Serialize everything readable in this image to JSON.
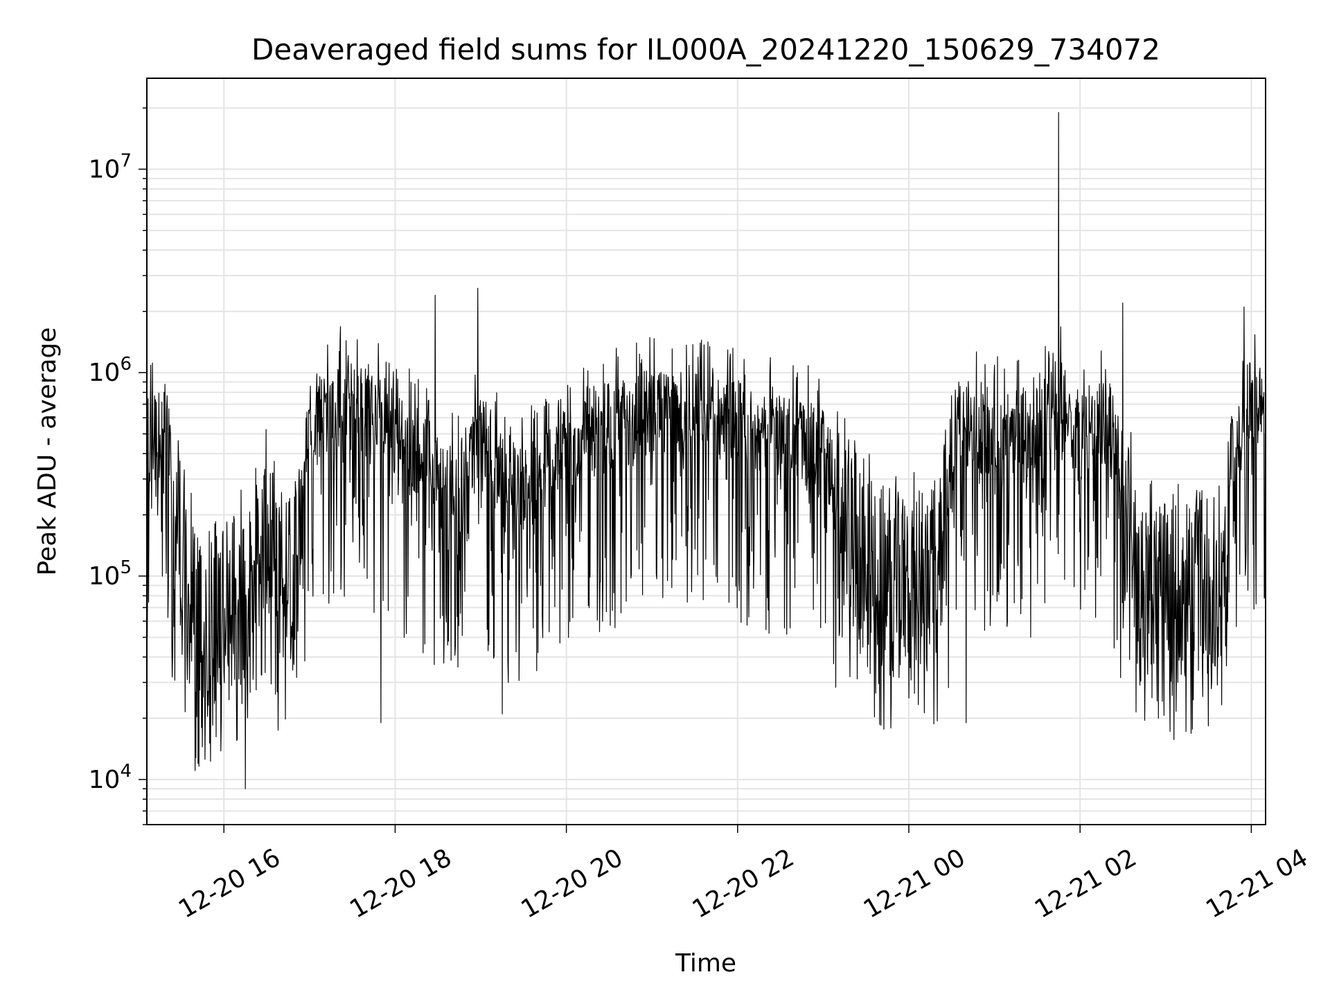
{
  "chart_data": {
    "type": "line",
    "title": "Deaveraged field sums for IL000A_20241220_150629_734072",
    "xlabel": "Time",
    "ylabel": "Peak ADU - average",
    "y_scale": "log",
    "ylim": [
      6000,
      28000000
    ],
    "xlim": [
      "2024-12-20 15:06",
      "2024-12-21 04:10"
    ],
    "x_ticks": [
      {
        "time": "2024-12-20 16:00",
        "label": "12-20 16"
      },
      {
        "time": "2024-12-20 18:00",
        "label": "12-20 18"
      },
      {
        "time": "2024-12-20 20:00",
        "label": "12-20 20"
      },
      {
        "time": "2024-12-20 22:00",
        "label": "12-20 22"
      },
      {
        "time": "2024-12-21 00:00",
        "label": "12-21 00"
      },
      {
        "time": "2024-12-21 02:00",
        "label": "12-21 02"
      },
      {
        "time": "2024-12-21 04:00",
        "label": "12-21 04"
      }
    ],
    "y_ticks": [
      {
        "value": 10000,
        "base": "10",
        "exp": "4"
      },
      {
        "value": 100000,
        "base": "10",
        "exp": "5"
      },
      {
        "value": 1000000,
        "base": "10",
        "exp": "6"
      },
      {
        "value": 10000000,
        "base": "10",
        "exp": "7"
      }
    ],
    "grid": true,
    "line_color": "#000000",
    "grid_color": "#e4e4e4",
    "series": [
      {
        "x": [
          "2024-12-20 15:06",
          "2024-12-20 15:20",
          "2024-12-20 15:30",
          "2024-12-20 15:40",
          "2024-12-20 15:50",
          "2024-12-20 16:00",
          "2024-12-20 16:10",
          "2024-12-20 16:20",
          "2024-12-20 16:30",
          "2024-12-20 16:40",
          "2024-12-20 16:50",
          "2024-12-20 17:00",
          "2024-12-20 17:20",
          "2024-12-20 17:40",
          "2024-12-20 18:00",
          "2024-12-20 18:20",
          "2024-12-20 18:40",
          "2024-12-20 19:00",
          "2024-12-20 19:20",
          "2024-12-20 19:40",
          "2024-12-20 20:00",
          "2024-12-20 20:30",
          "2024-12-20 21:00",
          "2024-12-20 21:30",
          "2024-12-20 22:00",
          "2024-12-20 22:30",
          "2024-12-20 23:00",
          "2024-12-20 23:20",
          "2024-12-20 23:40",
          "2024-12-21 00:00",
          "2024-12-21 00:20",
          "2024-12-21 00:35",
          "2024-12-21 01:00",
          "2024-12-21 01:30",
          "2024-12-21 01:45",
          "2024-12-21 02:00",
          "2024-12-21 02:20",
          "2024-12-21 02:40",
          "2024-12-21 03:00",
          "2024-12-21 03:20",
          "2024-12-21 03:40",
          "2024-12-21 03:55",
          "2024-12-21 04:10"
        ],
        "y": [
          500000,
          500000,
          150000,
          60000,
          60000,
          80000,
          70000,
          120000,
          150000,
          80000,
          100000,
          600000,
          700000,
          650000,
          500000,
          400000,
          250000,
          500000,
          250000,
          300000,
          450000,
          550000,
          600000,
          600000,
          550000,
          500000,
          400000,
          150000,
          100000,
          90000,
          100000,
          600000,
          500000,
          500000,
          700000,
          500000,
          550000,
          100000,
          80000,
          90000,
          100000,
          700000,
          650000
        ],
        "highlights": [
          {
            "x": "2024-12-20 15:42",
            "y": 12000
          },
          {
            "x": "2024-12-20 16:15",
            "y": 9000
          },
          {
            "x": "2024-12-20 17:50",
            "y": 19000
          },
          {
            "x": "2024-12-20 18:28",
            "y": 2400000
          },
          {
            "x": "2024-12-20 18:58",
            "y": 2600000
          },
          {
            "x": "2024-12-20 19:15",
            "y": 21000
          },
          {
            "x": "2024-12-21 00:40",
            "y": 19000
          },
          {
            "x": "2024-12-21 01:45",
            "y": 19000000
          },
          {
            "x": "2024-12-21 02:30",
            "y": 2200000
          },
          {
            "x": "2024-12-21 03:55",
            "y": 2100000
          }
        ]
      }
    ]
  }
}
